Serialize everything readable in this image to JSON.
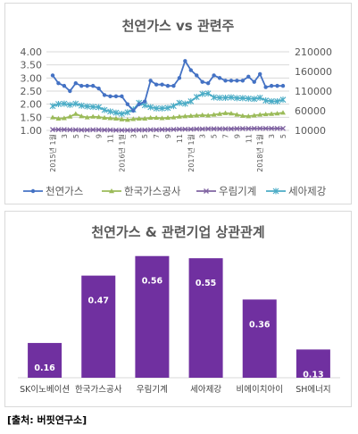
{
  "source": "[출처: 버핏연구소]",
  "chart_data": [
    {
      "type": "line",
      "title": "천연가스 vs 관련주",
      "x": [
        "2015년 1월",
        "2",
        "3",
        "4",
        "5",
        "6",
        "7",
        "8",
        "9",
        "10",
        "11",
        "12",
        "2016년 1월",
        "2",
        "3",
        "4",
        "5",
        "6",
        "7",
        "8",
        "9",
        "10",
        "11",
        "12",
        "2017년 1월",
        "2",
        "3",
        "4",
        "5",
        "6",
        "7",
        "8",
        "9",
        "10",
        "11",
        "12",
        "2018년 1월",
        "2",
        "3",
        "4",
        "5"
      ],
      "x_ticks": [
        "2015년 1월",
        "3",
        "5",
        "7",
        "9",
        "11",
        "2016년 1월",
        "3",
        "5",
        "7",
        "9",
        "11",
        "2017년 1월",
        "3",
        "5",
        "7",
        "9",
        "11",
        "2018년 1월",
        "3",
        "5"
      ],
      "ylim": [
        1.0,
        4.0
      ],
      "y_ticks": [
        "1.00",
        "1.50",
        "2.00",
        "2.50",
        "3.00",
        "3.50",
        "4.00"
      ],
      "y2lim": [
        10000,
        210000
      ],
      "y2_ticks": [
        "10000",
        "60000",
        "110000",
        "160000",
        "210000"
      ],
      "series": [
        {
          "name": "천연가스",
          "axis": "left",
          "color": "#4472c4",
          "marker": "circle",
          "values": [
            3.1,
            2.8,
            2.7,
            2.5,
            2.8,
            2.7,
            2.7,
            2.7,
            2.6,
            2.35,
            2.3,
            2.3,
            2.3,
            2.0,
            1.75,
            2.0,
            2.1,
            2.9,
            2.75,
            2.75,
            2.7,
            2.7,
            3.0,
            3.65,
            3.3,
            3.1,
            2.85,
            2.8,
            3.1,
            3.0,
            2.9,
            2.9,
            2.9,
            2.9,
            3.05,
            2.85,
            3.15,
            2.65,
            2.7,
            2.7,
            2.7
          ]
        },
        {
          "name": "한국가스공사",
          "axis": "right",
          "color": "#9bbb59",
          "marker": "triangle",
          "values": [
            43000,
            40000,
            41000,
            45000,
            52000,
            46000,
            43000,
            45000,
            44000,
            42000,
            41000,
            40000,
            38000,
            37000,
            39000,
            40000,
            40000,
            42000,
            42000,
            41000,
            42000,
            43000,
            45000,
            46000,
            47000,
            48000,
            49000,
            48000,
            50000,
            52000,
            54000,
            53000,
            50000,
            47000,
            46000,
            48000,
            50000,
            51000,
            52000,
            53000,
            55000
          ]
        },
        {
          "name": "우림기계",
          "axis": "right",
          "color": "#8064a2",
          "marker": "x",
          "values": [
            12000,
            12000,
            12000,
            11500,
            11500,
            11000,
            11000,
            11500,
            11500,
            11000,
            11000,
            10500,
            10500,
            10500,
            10500,
            11000,
            11000,
            11500,
            11500,
            12000,
            12000,
            12500,
            13000,
            13000,
            13000,
            13500,
            13500,
            14000,
            14000,
            14000,
            14000,
            14000,
            14500,
            14500,
            14500,
            15000,
            15000,
            15000,
            15000,
            15000,
            15000
          ]
        },
        {
          "name": "세아제강",
          "axis": "right",
          "color": "#4bacc6",
          "marker": "star",
          "values": [
            72000,
            77000,
            78000,
            75000,
            78000,
            73000,
            71000,
            70000,
            69000,
            62000,
            58000,
            55000,
            52000,
            56000,
            63000,
            80000,
            74000,
            69000,
            66000,
            66000,
            67000,
            72000,
            80000,
            78000,
            84000,
            95000,
            103000,
            104000,
            94000,
            93000,
            93000,
            94000,
            92000,
            92000,
            91000,
            90000,
            93000,
            86000,
            84000,
            84000,
            88000
          ]
        }
      ]
    },
    {
      "type": "bar",
      "title": "천연가스 & 관련기업 상관관계",
      "categories": [
        "SK이노베이션",
        "한국가스공사",
        "우림기계",
        "세아제강",
        "비에이치아이",
        "SH에너지"
      ],
      "values": [
        0.16,
        0.47,
        0.56,
        0.55,
        0.36,
        0.13
      ],
      "labels": [
        "0.16",
        "0.47",
        "0.56",
        "0.55",
        "0.36",
        "0.13"
      ],
      "ylim": [
        0,
        0.6
      ],
      "color": "#7030a0"
    }
  ]
}
